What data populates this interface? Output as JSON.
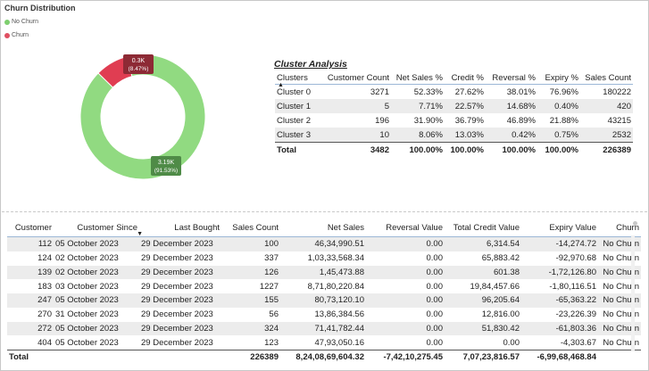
{
  "churn_chart": {
    "title": "Churn Distribution",
    "legend": [
      {
        "label": "No Churn",
        "color": "#7ecf6f"
      },
      {
        "label": "Churn",
        "color": "#e05062"
      }
    ],
    "slices": [
      {
        "name": "No Churn",
        "fraction": 0.9153,
        "value_label": "3.19K",
        "pct_label": "(91.53%)",
        "color": "#91da81",
        "callout_bg": "#4f8b47"
      },
      {
        "name": "Churn",
        "fraction": 0.0847,
        "value_label": "0.3K",
        "pct_label": "(8.47%)",
        "color": "#e03d52",
        "callout_bg": "#8d2a35"
      }
    ]
  },
  "cluster_analysis": {
    "title": "Cluster Analysis",
    "columns": [
      "Clusters",
      "Customer Count",
      "Net Sales %",
      "Credit %",
      "Reversal %",
      "Expiry %",
      "Sales Count"
    ],
    "rows": [
      [
        "Cluster 0",
        "3271",
        "52.33%",
        "27.62%",
        "38.01%",
        "76.96%",
        "180222"
      ],
      [
        "Cluster 1",
        "5",
        "7.71%",
        "22.57%",
        "14.68%",
        "0.40%",
        "420"
      ],
      [
        "Cluster 2",
        "196",
        "31.90%",
        "36.79%",
        "46.89%",
        "21.88%",
        "43215"
      ],
      [
        "Cluster 3",
        "10",
        "8.06%",
        "13.03%",
        "0.42%",
        "0.75%",
        "2532"
      ]
    ],
    "total": [
      "Total",
      "3482",
      "100.00%",
      "100.00%",
      "100.00%",
      "100.00%",
      "226389"
    ]
  },
  "customer_table": {
    "columns": [
      "Customer",
      "Customer Since",
      "Last Bought",
      "Sales Count",
      "Net Sales",
      "Reversal Value",
      "Total Credit Value",
      "Expiry Value",
      "Churn"
    ],
    "rows": [
      [
        "112",
        "05 October 2023",
        "29 December 2023",
        "100",
        "46,34,990.51",
        "0.00",
        "6,314.54",
        "-14,274.72",
        "No Churn"
      ],
      [
        "124",
        "02 October 2023",
        "29 December 2023",
        "337",
        "1,03,33,568.34",
        "0.00",
        "65,883.42",
        "-92,970.68",
        "No Churn"
      ],
      [
        "139",
        "02 October 2023",
        "29 December 2023",
        "126",
        "1,45,473.88",
        "0.00",
        "601.38",
        "-1,72,126.80",
        "No Churn"
      ],
      [
        "183",
        "03 October 2023",
        "29 December 2023",
        "1227",
        "8,71,80,220.84",
        "0.00",
        "19,84,457.66",
        "-1,80,116.51",
        "No Churn"
      ],
      [
        "247",
        "05 October 2023",
        "29 December 2023",
        "155",
        "80,73,120.10",
        "0.00",
        "96,205.64",
        "-65,363.22",
        "No Churn"
      ],
      [
        "270",
        "31 October 2023",
        "29 December 2023",
        "56",
        "13,86,384.56",
        "0.00",
        "12,816.00",
        "-23,226.39",
        "No Churn"
      ],
      [
        "272",
        "05 October 2023",
        "29 December 2023",
        "324",
        "71,41,782.44",
        "0.00",
        "51,830.42",
        "-61,803.36",
        "No Churn"
      ],
      [
        "404",
        "05 October 2023",
        "29 December 2023",
        "123",
        "47,93,050.16",
        "0.00",
        "0.00",
        "-4,303.67",
        "No Churn"
      ]
    ],
    "total": [
      "Total",
      "",
      "",
      "226389",
      "8,24,08,69,604.32",
      "-7,42,10,275.45",
      "7,07,23,816.57",
      "-6,99,68,468.84",
      ""
    ],
    "sort_icon": "sort-descending-icon"
  }
}
